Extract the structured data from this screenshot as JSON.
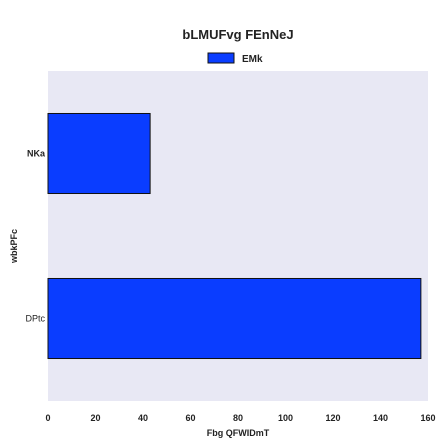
{
  "chart_data": {
    "type": "bar",
    "orientation": "horizontal",
    "title": "bLMUFvg FEnNeJ",
    "xlabel": "Fbg QFWIDmT",
    "ylabel": "wbkPFc",
    "categories": [
      "NKa",
      "DPtc"
    ],
    "series": [
      {
        "name": "EMk",
        "values": [
          43,
          157
        ],
        "color": "#0a3dff"
      }
    ],
    "xlim": [
      0,
      160
    ],
    "xticks": [
      0,
      20,
      40,
      60,
      80,
      100,
      120,
      140,
      160
    ],
    "grid": false,
    "legend": "top-center",
    "plot_background": "#e8e8f4"
  }
}
